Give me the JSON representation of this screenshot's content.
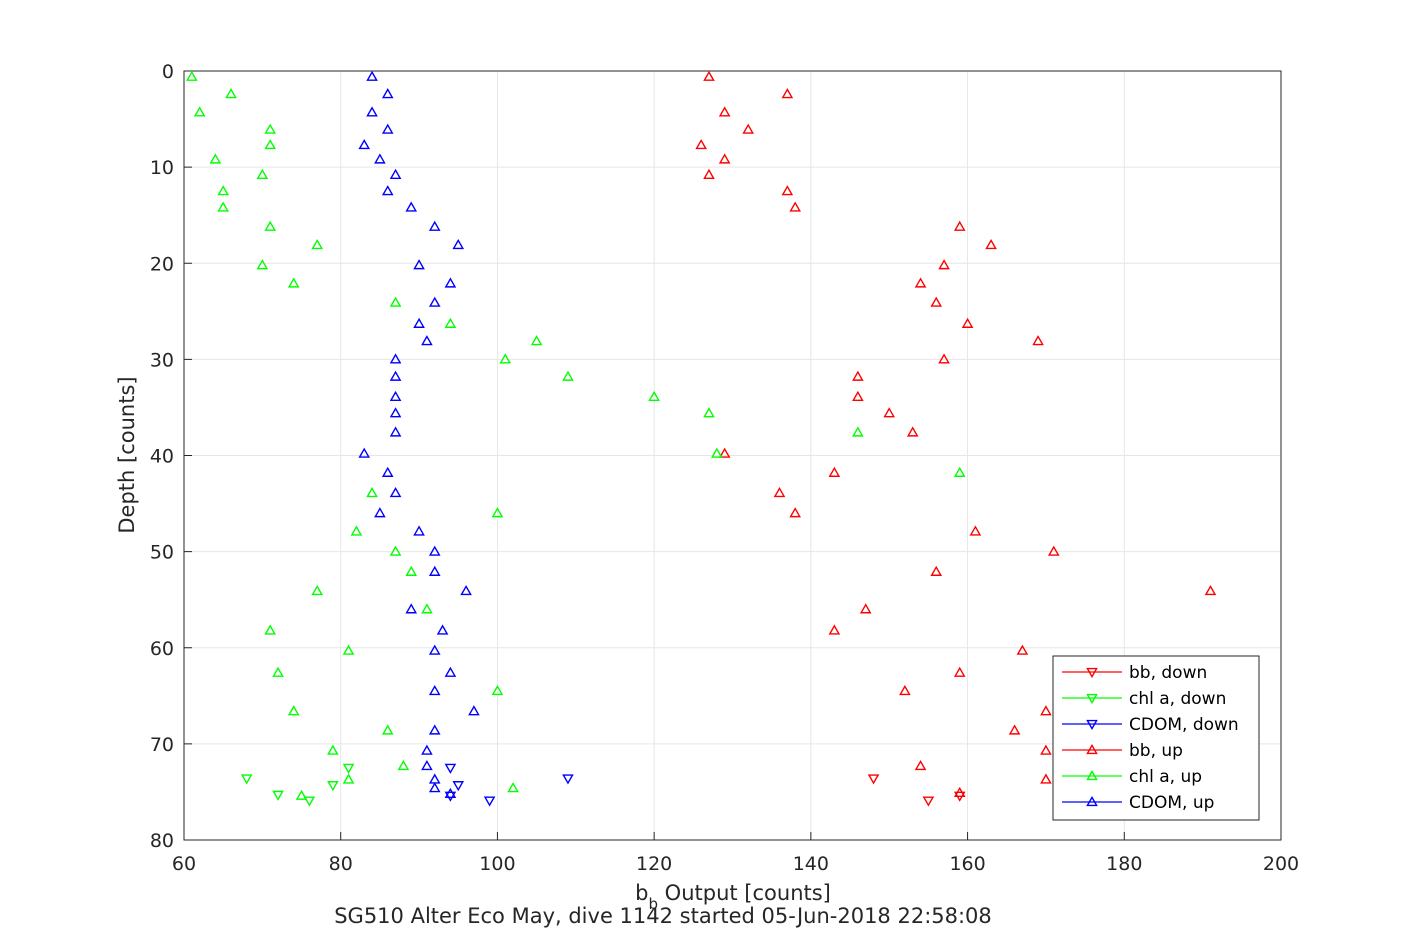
{
  "chart_data": {
    "type": "scatter",
    "title": "SG510 Alter Eco May, dive 1142 started 05-Jun-2018 22:58:08",
    "xlabel": "b",
    "xlabel_sub": "b",
    "xlabel_rest": " Output [counts]",
    "ylabel": "Depth [counts]",
    "xlim": [
      60,
      200
    ],
    "ylim": [
      0,
      80
    ],
    "y_reversed": true,
    "grid": true,
    "legend_position": "bottom-right",
    "x_ticks": [
      "60",
      "80",
      "100",
      "120",
      "140",
      "160",
      "180",
      "200"
    ],
    "y_ticks": [
      "0",
      "10",
      "20",
      "30",
      "40",
      "50",
      "60",
      "70",
      "80"
    ],
    "series": [
      {
        "name": "bb, down",
        "color": "#ff0000",
        "marker": "down",
        "points": [
          [
            148,
            73.6
          ],
          [
            155,
            75.9
          ],
          [
            159,
            75.4
          ]
        ]
      },
      {
        "name": "chl a, down",
        "color": "#00ff00",
        "marker": "down",
        "points": [
          [
            68,
            73.6
          ],
          [
            72,
            75.3
          ],
          [
            76,
            75.9
          ],
          [
            79,
            74.3
          ],
          [
            81,
            72.5
          ]
        ]
      },
      {
        "name": "CDOM, down",
        "color": "#0000ff",
        "marker": "down",
        "points": [
          [
            109,
            73.6
          ],
          [
            99,
            75.9
          ],
          [
            94,
            75.4
          ],
          [
            95,
            74.3
          ],
          [
            94,
            72.5
          ]
        ]
      },
      {
        "name": "bb, up",
        "color": "#ff0000",
        "marker": "up",
        "points": [
          [
            127,
            0.6
          ],
          [
            137,
            2.4
          ],
          [
            129,
            4.3
          ],
          [
            132,
            6.1
          ],
          [
            126,
            7.7
          ],
          [
            129,
            9.2
          ],
          [
            127,
            10.8
          ],
          [
            137,
            12.5
          ],
          [
            138,
            14.2
          ],
          [
            159,
            16.2
          ],
          [
            163,
            18.1
          ],
          [
            157,
            20.2
          ],
          [
            154,
            22.1
          ],
          [
            156,
            24.1
          ],
          [
            160,
            26.3
          ],
          [
            169,
            28.1
          ],
          [
            157,
            30.0
          ],
          [
            146,
            31.8
          ],
          [
            146,
            33.9
          ],
          [
            150,
            35.6
          ],
          [
            153,
            37.6
          ],
          [
            129,
            39.8
          ],
          [
            143,
            41.8
          ],
          [
            136,
            43.9
          ],
          [
            138,
            46.0
          ],
          [
            161,
            47.9
          ],
          [
            171,
            50.0
          ],
          [
            156,
            52.1
          ],
          [
            191,
            54.1
          ],
          [
            147,
            56.0
          ],
          [
            143,
            58.2
          ],
          [
            167,
            60.3
          ],
          [
            159,
            62.6
          ],
          [
            152,
            64.5
          ],
          [
            170,
            66.6
          ],
          [
            166,
            68.6
          ],
          [
            170,
            70.7
          ],
          [
            154,
            72.3
          ],
          [
            170,
            73.7
          ],
          [
            159,
            75.1
          ]
        ]
      },
      {
        "name": "chl a, up",
        "color": "#00ff00",
        "marker": "up",
        "points": [
          [
            61,
            0.6
          ],
          [
            66,
            2.4
          ],
          [
            62,
            4.3
          ],
          [
            71,
            6.1
          ],
          [
            71,
            7.7
          ],
          [
            64,
            9.2
          ],
          [
            70,
            10.8
          ],
          [
            65,
            12.5
          ],
          [
            65,
            14.2
          ],
          [
            71,
            16.2
          ],
          [
            77,
            18.1
          ],
          [
            70,
            20.2
          ],
          [
            74,
            22.1
          ],
          [
            87,
            24.1
          ],
          [
            94,
            26.3
          ],
          [
            105,
            28.1
          ],
          [
            101,
            30.0
          ],
          [
            109,
            31.8
          ],
          [
            120,
            33.9
          ],
          [
            127,
            35.6
          ],
          [
            146,
            37.6
          ],
          [
            128,
            39.8
          ],
          [
            159,
            41.8
          ],
          [
            84,
            43.9
          ],
          [
            100,
            46.0
          ],
          [
            82,
            47.9
          ],
          [
            87,
            50.0
          ],
          [
            89,
            52.1
          ],
          [
            77,
            54.1
          ],
          [
            91,
            56.0
          ],
          [
            71,
            58.2
          ],
          [
            81,
            60.3
          ],
          [
            72,
            62.6
          ],
          [
            100,
            64.5
          ],
          [
            74,
            66.6
          ],
          [
            86,
            68.6
          ],
          [
            79,
            70.7
          ],
          [
            88,
            72.3
          ],
          [
            81,
            73.7
          ],
          [
            102,
            74.6
          ],
          [
            75,
            75.4
          ]
        ]
      },
      {
        "name": "CDOM, up",
        "color": "#0000ff",
        "marker": "up",
        "points": [
          [
            84,
            0.6
          ],
          [
            86,
            2.4
          ],
          [
            84,
            4.3
          ],
          [
            86,
            6.1
          ],
          [
            83,
            7.7
          ],
          [
            85,
            9.2
          ],
          [
            87,
            10.8
          ],
          [
            86,
            12.5
          ],
          [
            89,
            14.2
          ],
          [
            92,
            16.2
          ],
          [
            95,
            18.1
          ],
          [
            90,
            20.2
          ],
          [
            94,
            22.1
          ],
          [
            92,
            24.1
          ],
          [
            90,
            26.3
          ],
          [
            91,
            28.1
          ],
          [
            87,
            30.0
          ],
          [
            87,
            31.8
          ],
          [
            87,
            33.9
          ],
          [
            87,
            35.6
          ],
          [
            87,
            37.6
          ],
          [
            83,
            39.8
          ],
          [
            86,
            41.8
          ],
          [
            87,
            43.9
          ],
          [
            85,
            46.0
          ],
          [
            90,
            47.9
          ],
          [
            92,
            50.0
          ],
          [
            92,
            52.1
          ],
          [
            96,
            54.1
          ],
          [
            89,
            56.0
          ],
          [
            93,
            58.2
          ],
          [
            92,
            60.3
          ],
          [
            94,
            62.6
          ],
          [
            92,
            64.5
          ],
          [
            97,
            66.6
          ],
          [
            92,
            68.6
          ],
          [
            91,
            70.7
          ],
          [
            91,
            72.3
          ],
          [
            92,
            73.7
          ],
          [
            92,
            74.6
          ],
          [
            94,
            75.2
          ]
        ]
      }
    ]
  }
}
